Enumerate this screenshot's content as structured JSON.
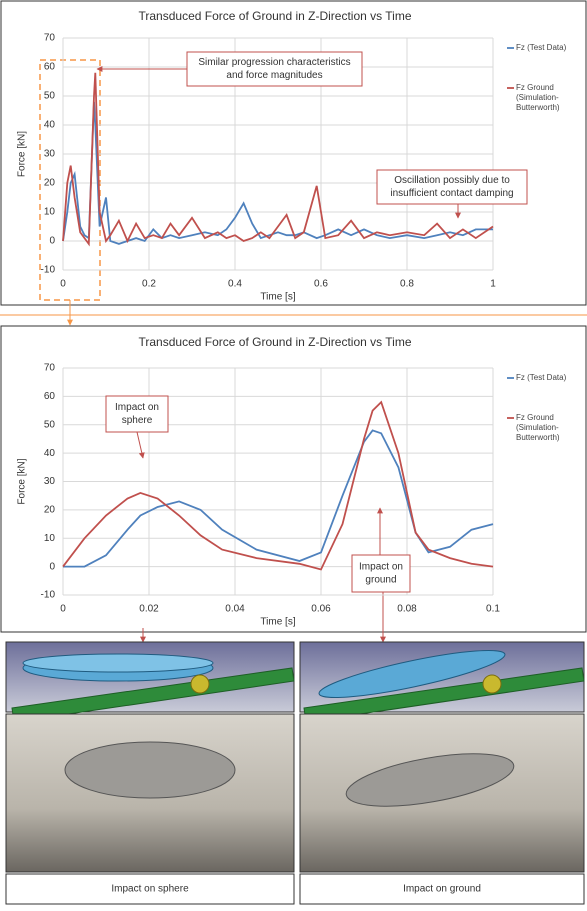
{
  "chart_data": [
    {
      "type": "line",
      "title": "Transduced Force of Ground in Z-Direction vs Time",
      "xlabel": "Time [s]",
      "ylabel": "Force [kN]",
      "x": [
        0,
        0.01,
        0.018,
        0.027,
        0.04,
        0.05,
        0.06,
        0.072,
        0.075,
        0.085,
        0.1,
        0.11,
        0.13,
        0.15,
        0.17,
        0.19,
        0.21,
        0.23,
        0.25,
        0.27,
        0.3,
        0.33,
        0.36,
        0.38,
        0.4,
        0.42,
        0.44,
        0.46,
        0.48,
        0.5,
        0.52,
        0.54,
        0.56,
        0.59,
        0.61,
        0.64,
        0.67,
        0.7,
        0.73,
        0.76,
        0.8,
        0.84,
        0.87,
        0.9,
        0.93,
        0.96,
        1.0
      ],
      "series": [
        {
          "name": "Fz (Test Data)",
          "color": "#4f81bd",
          "values": [
            0,
            10,
            20,
            23,
            5,
            2,
            1,
            48,
            40,
            5,
            15,
            0,
            -1,
            0,
            1,
            0,
            4,
            1,
            2,
            1,
            2,
            3,
            2,
            4,
            8,
            13,
            6,
            1,
            2,
            3,
            2,
            2,
            3,
            1,
            2,
            4,
            2,
            4,
            2,
            1,
            2,
            1,
            2,
            3,
            2,
            4,
            4
          ]
        },
        {
          "name": "Fz Ground (Simulation-Butterworth)",
          "color": "#c0504d",
          "values": [
            0,
            20,
            26,
            15,
            3,
            1,
            -1,
            50,
            58,
            10,
            0,
            2,
            7,
            0,
            6,
            1,
            2,
            1,
            6,
            2,
            8,
            1,
            3,
            1,
            2,
            0,
            1,
            3,
            1,
            5,
            9,
            1,
            3,
            19,
            1,
            2,
            7,
            1,
            3,
            2,
            3,
            2,
            6,
            1,
            4,
            1,
            5
          ]
        }
      ],
      "xlim": [
        0,
        1
      ],
      "ylim": [
        -10,
        70
      ],
      "xticks": [
        0,
        0.2,
        0.4,
        0.6,
        0.8,
        1
      ],
      "yticks": [
        -10,
        0,
        10,
        20,
        30,
        40,
        50,
        60,
        70
      ],
      "grid": true,
      "legend": "right",
      "annotations": [
        {
          "text": [
            "Similar progression characteristics",
            "and force magnitudes"
          ]
        },
        {
          "text": [
            "Oscillation possibly due to",
            "insufficient contact damping"
          ]
        }
      ]
    },
    {
      "type": "line",
      "title": "Transduced Force of Ground in Z-Direction vs Time",
      "xlabel": "Time [s]",
      "ylabel": "Force [kN]",
      "x": [
        0,
        0.005,
        0.01,
        0.015,
        0.018,
        0.022,
        0.027,
        0.032,
        0.037,
        0.045,
        0.055,
        0.06,
        0.065,
        0.07,
        0.072,
        0.074,
        0.078,
        0.082,
        0.085,
        0.09,
        0.095,
        0.1
      ],
      "series": [
        {
          "name": "Fz (Test Data)",
          "color": "#4f81bd",
          "values": [
            0,
            0,
            4,
            13,
            18,
            21,
            23,
            20,
            13,
            6,
            2,
            5,
            25,
            44,
            48,
            47,
            35,
            12,
            5,
            7,
            13,
            15
          ]
        },
        {
          "name": "Fz Ground (Simulation-Butterworth)",
          "color": "#c0504d",
          "values": [
            0,
            10,
            18,
            24,
            26,
            24,
            18,
            11,
            6,
            3,
            1,
            -1,
            15,
            45,
            55,
            58,
            40,
            12,
            6,
            3,
            1,
            0
          ]
        }
      ],
      "xlim": [
        0,
        0.1
      ],
      "ylim": [
        -10,
        70
      ],
      "xticks": [
        0,
        0.02,
        0.04,
        0.06,
        0.08,
        0.1
      ],
      "yticks": [
        -10,
        0,
        10,
        20,
        30,
        40,
        50,
        60,
        70
      ],
      "grid": true,
      "legend": "right",
      "annotations": [
        {
          "text": [
            "Impact on",
            "sphere"
          ]
        },
        {
          "text": [
            "Impact on",
            "ground"
          ]
        }
      ]
    }
  ],
  "captions": [
    "Impact on sphere",
    "Impact on ground"
  ]
}
